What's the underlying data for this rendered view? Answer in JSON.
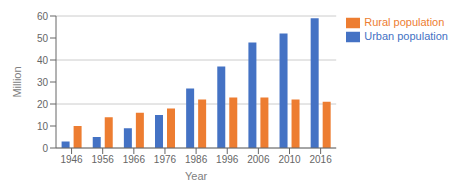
{
  "chart_data": {
    "type": "bar",
    "xlabel": "Year",
    "ylabel": "Million",
    "categories": [
      "1946",
      "1956",
      "1966",
      "1976",
      "1986",
      "1996",
      "2006",
      "2010",
      "2016"
    ],
    "series": [
      {
        "name": "Urban population",
        "color": "#4472C4",
        "values": [
          3,
          5,
          9,
          15,
          27,
          37,
          48,
          52,
          59
        ]
      },
      {
        "name": "Rural population",
        "color": "#ED7D31",
        "values": [
          10,
          14,
          16,
          18,
          22,
          23,
          23,
          22,
          21
        ]
      }
    ],
    "ylim": [
      0,
      60
    ],
    "yticks": [
      0,
      10,
      20,
      30,
      40,
      50,
      60
    ],
    "grid": true,
    "legend": "right"
  }
}
